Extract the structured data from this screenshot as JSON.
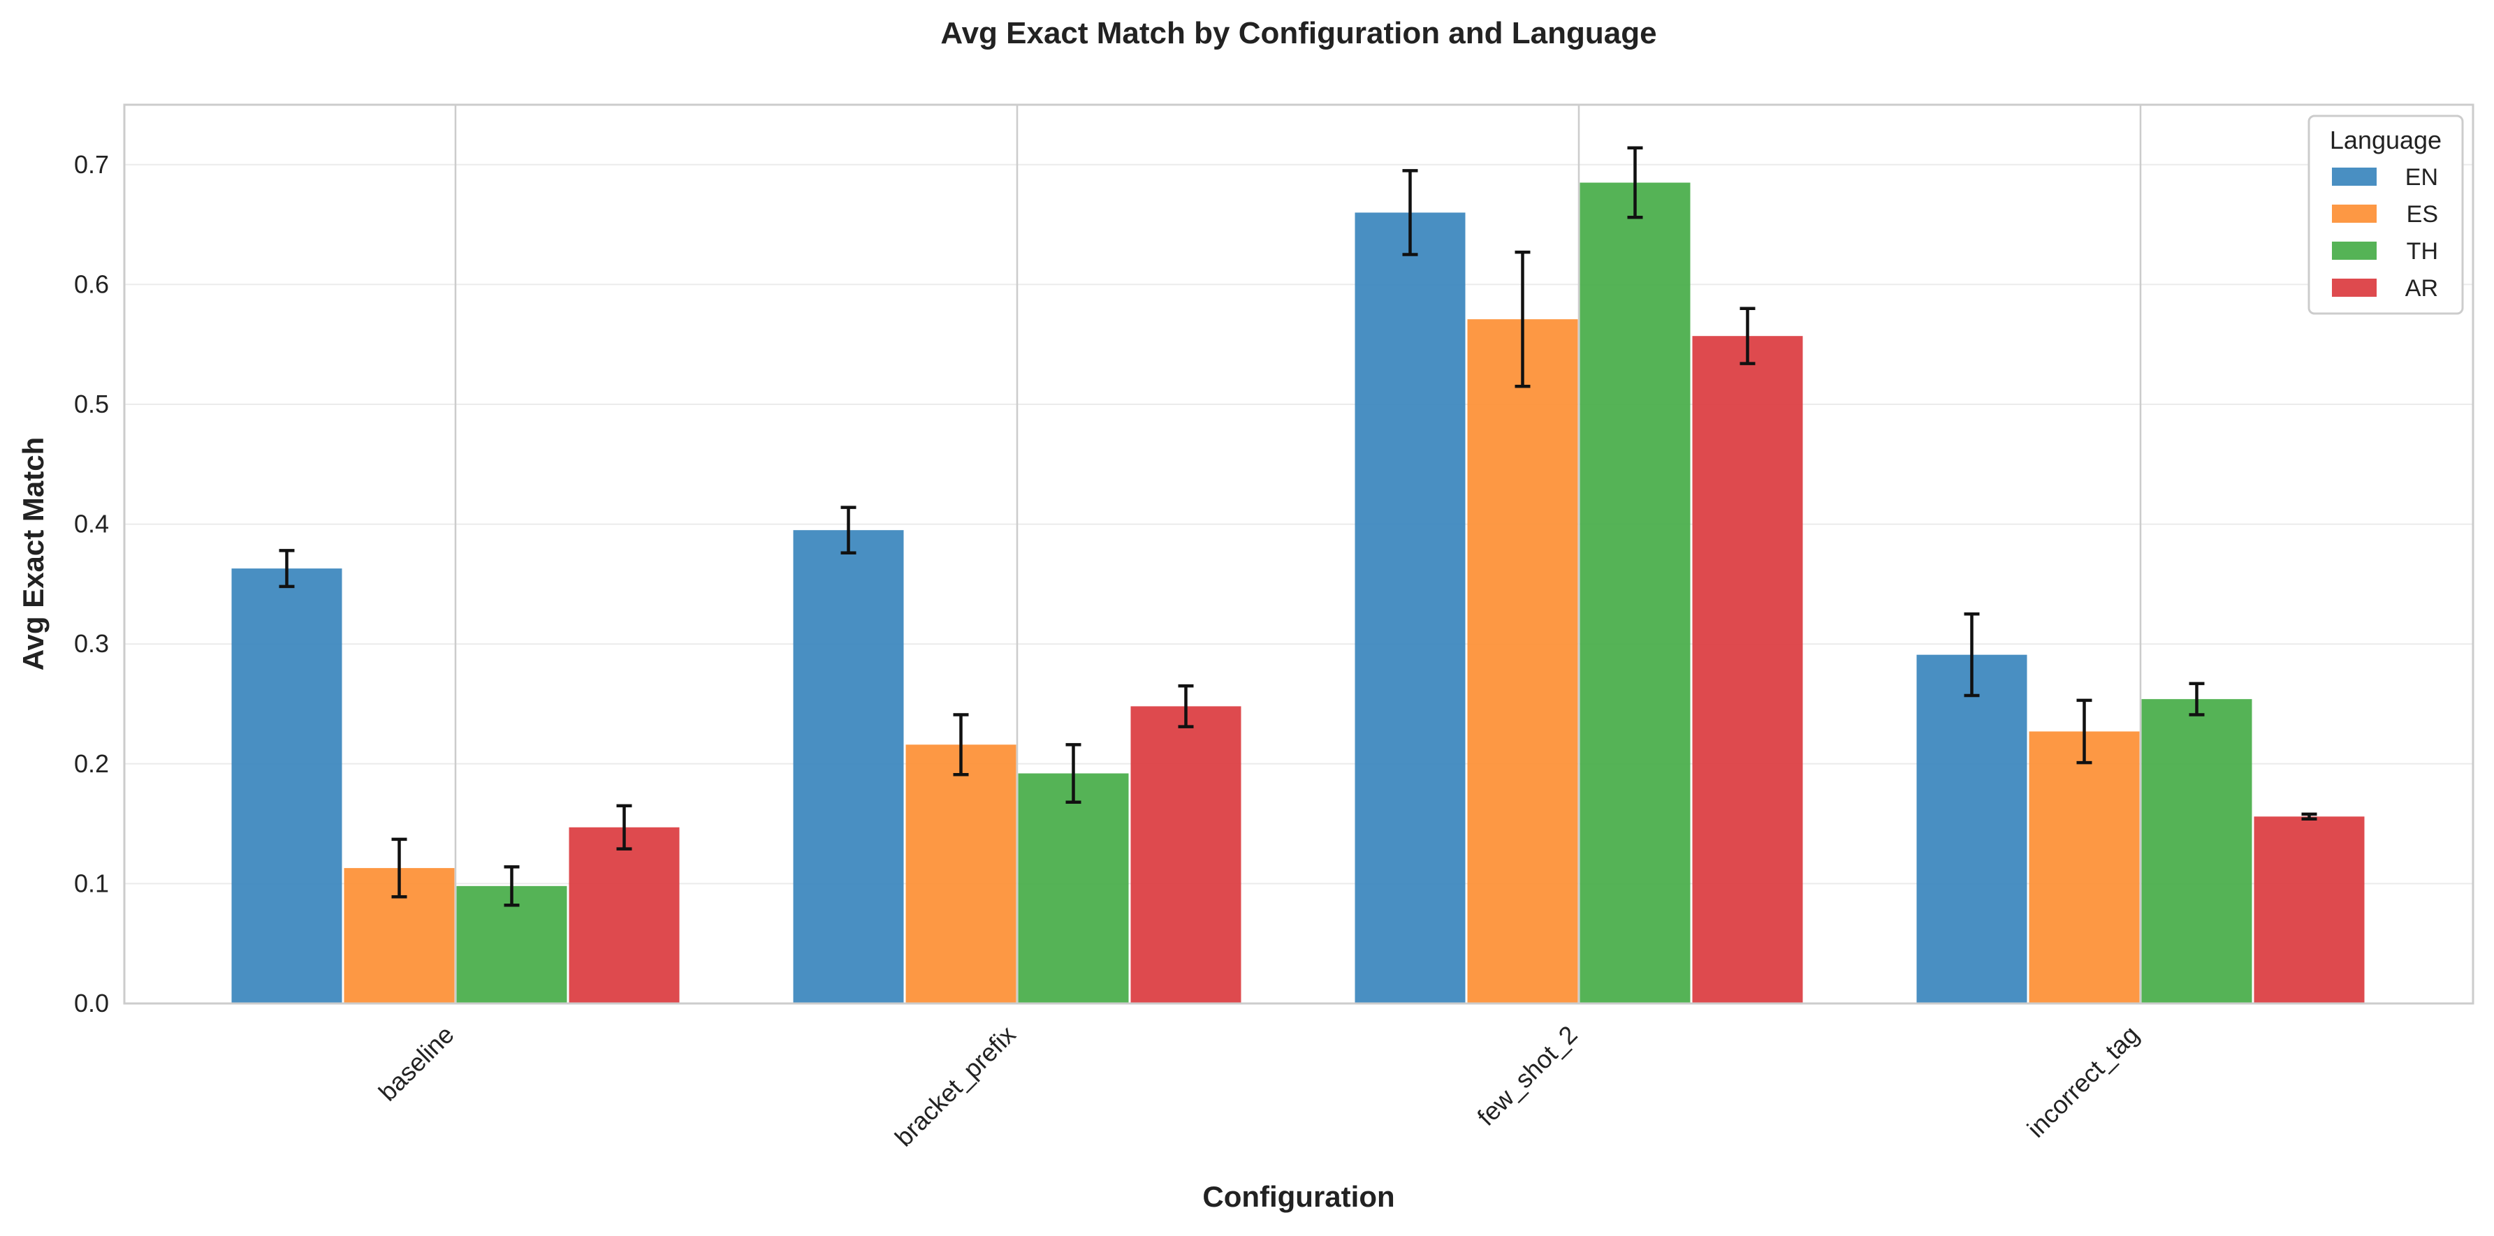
{
  "chart_data": {
    "type": "bar",
    "title": "Avg Exact Match by Configuration and Language",
    "xlabel": "Configuration",
    "ylabel": "Avg Exact Match",
    "ylim": [
      0,
      0.75
    ],
    "yticks": [
      "0.0",
      "0.1",
      "0.2",
      "0.3",
      "0.4",
      "0.5",
      "0.6",
      "0.7"
    ],
    "ytick_values": [
      0,
      0.1,
      0.2,
      0.3,
      0.4,
      0.5,
      0.6,
      0.7
    ],
    "categories": [
      "baseline",
      "bracket_prefix",
      "few_shot_2",
      "incorrect_tag"
    ],
    "grid": true,
    "legend": {
      "title": "Language",
      "placement": "top-right"
    },
    "series": [
      {
        "name": "EN",
        "color": "#3a85bd",
        "values": [
          0.363,
          0.395,
          0.66,
          0.291
        ],
        "errors": [
          0.015,
          0.019,
          0.035,
          0.034
        ]
      },
      {
        "name": "ES",
        "color": "#fd8f34",
        "values": [
          0.113,
          0.216,
          0.571,
          0.227
        ],
        "errors": [
          0.024,
          0.025,
          0.056,
          0.026
        ]
      },
      {
        "name": "TH",
        "color": "#46ac48",
        "values": [
          0.098,
          0.192,
          0.685,
          0.254
        ],
        "errors": [
          0.016,
          0.024,
          0.029,
          0.013
        ]
      },
      {
        "name": "AR",
        "color": "#db3b3f",
        "values": [
          0.147,
          0.248,
          0.557,
          0.156
        ],
        "errors": [
          0.018,
          0.017,
          0.023,
          0.002
        ]
      }
    ]
  }
}
